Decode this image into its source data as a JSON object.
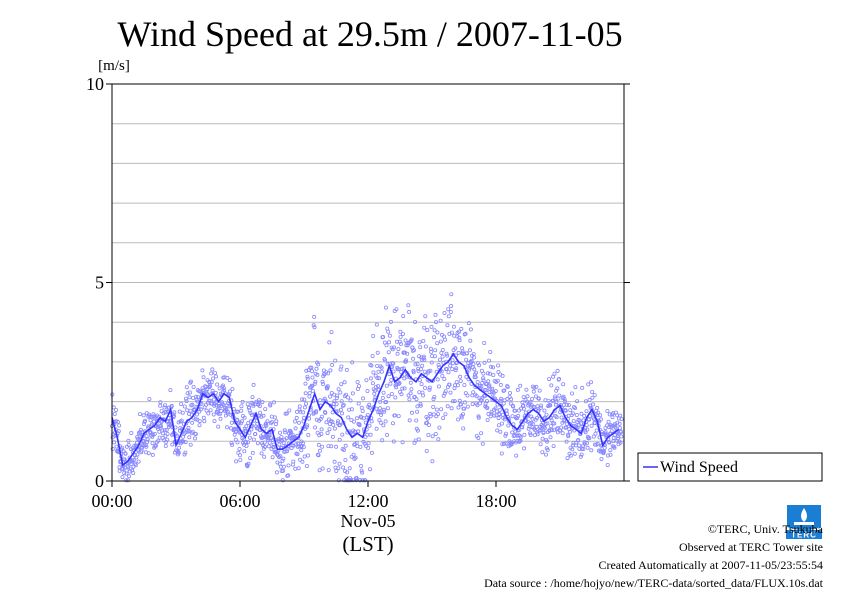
{
  "chart_data": {
    "type": "scatter",
    "title": "Wind Speed at 29.5m / 2007-11-05",
    "ylabel": "[m/s]",
    "xlabel": "(LST)",
    "date_label": "Nov-05",
    "ylim": [
      0,
      10
    ],
    "xlim": [
      "00:00",
      "24:00"
    ],
    "y_ticks": [
      {
        "value": 0,
        "label": "0"
      },
      {
        "value": 5,
        "label": "5"
      },
      {
        "value": 10,
        "label": "10"
      }
    ],
    "x_ticks": [
      {
        "value": 0,
        "label": "00:00"
      },
      {
        "value": 6,
        "label": "06:00"
      },
      {
        "value": 12,
        "label": "12:00"
      },
      {
        "value": 18,
        "label": "18:00"
      }
    ],
    "grid": true,
    "legend_position": "right",
    "series": [
      {
        "name": "Wind Speed",
        "color": "#3333ff",
        "point_color": "#8888ff",
        "mean_x_hours": [
          0.0,
          0.25,
          0.5,
          0.75,
          1.0,
          1.25,
          1.5,
          1.75,
          2.0,
          2.25,
          2.5,
          2.75,
          3.0,
          3.25,
          3.5,
          3.75,
          4.0,
          4.25,
          4.5,
          4.75,
          5.0,
          5.25,
          5.5,
          5.75,
          6.0,
          6.25,
          6.5,
          6.75,
          7.0,
          7.25,
          7.5,
          7.75,
          8.0,
          8.25,
          8.5,
          8.75,
          9.0,
          9.25,
          9.5,
          9.75,
          10.0,
          10.25,
          10.5,
          10.75,
          11.0,
          11.25,
          11.5,
          11.75,
          12.0,
          12.25,
          12.5,
          12.75,
          13.0,
          13.25,
          13.5,
          13.75,
          14.0,
          14.25,
          14.5,
          14.75,
          15.0,
          15.25,
          15.5,
          15.75,
          16.0,
          16.25,
          16.5,
          16.75,
          17.0,
          17.25,
          17.5,
          17.75,
          18.0,
          18.25,
          18.5,
          18.75,
          19.0,
          19.25,
          19.5,
          19.75,
          20.0,
          20.25,
          20.5,
          20.75,
          21.0,
          21.25,
          21.5,
          21.75,
          22.0,
          22.25,
          22.5,
          22.75,
          23.0,
          23.25,
          23.5,
          23.75
        ],
        "mean_y": [
          1.6,
          1.1,
          0.4,
          0.5,
          0.7,
          0.9,
          1.2,
          1.3,
          1.4,
          1.6,
          1.5,
          1.8,
          0.9,
          1.2,
          1.5,
          1.6,
          1.8,
          2.2,
          2.1,
          2.2,
          2.0,
          2.2,
          2.1,
          1.5,
          1.3,
          1.1,
          1.4,
          1.7,
          1.3,
          1.2,
          1.3,
          0.8,
          0.8,
          0.9,
          1.0,
          1.1,
          1.4,
          1.8,
          2.2,
          1.8,
          2.0,
          1.9,
          1.7,
          1.6,
          1.3,
          1.1,
          1.2,
          1.1,
          1.5,
          1.8,
          2.2,
          2.5,
          2.9,
          2.5,
          2.6,
          2.8,
          2.6,
          2.5,
          2.7,
          2.6,
          2.5,
          2.7,
          2.9,
          3.0,
          3.2,
          3.0,
          2.9,
          2.6,
          2.4,
          2.3,
          2.2,
          2.1,
          2.0,
          1.9,
          1.6,
          1.4,
          1.3,
          1.5,
          1.7,
          1.8,
          1.7,
          1.5,
          1.6,
          1.8,
          1.9,
          1.6,
          1.4,
          1.3,
          1.2,
          1.6,
          1.8,
          1.5,
          0.9,
          1.1,
          1.2,
          1.3
        ],
        "scatter_amplitude": [
          0.4,
          0.4,
          0.3,
          0.3,
          0.3,
          0.4,
          0.4,
          0.4,
          0.4,
          0.4,
          0.4,
          0.4,
          0.5,
          0.5,
          0.5,
          0.5,
          0.4,
          0.4,
          0.4,
          0.4,
          0.4,
          0.4,
          0.4,
          0.5,
          0.5,
          0.5,
          0.5,
          0.5,
          0.5,
          0.5,
          0.5,
          0.5,
          0.5,
          0.5,
          0.5,
          0.6,
          0.7,
          0.9,
          1.1,
          1.1,
          1.0,
          1.0,
          1.0,
          1.0,
          1.0,
          1.1,
          1.1,
          1.1,
          1.0,
          1.0,
          1.0,
          1.0,
          1.0,
          1.0,
          1.0,
          1.0,
          1.0,
          1.0,
          1.0,
          1.0,
          1.0,
          1.0,
          1.0,
          1.0,
          1.0,
          1.0,
          1.0,
          0.9,
          0.8,
          0.7,
          0.7,
          0.6,
          0.6,
          0.6,
          0.5,
          0.5,
          0.5,
          0.5,
          0.5,
          0.5,
          0.5,
          0.5,
          0.5,
          0.5,
          0.5,
          0.5,
          0.5,
          0.5,
          0.5,
          0.5,
          0.5,
          0.5,
          0.4,
          0.4,
          0.4,
          0.4
        ]
      }
    ]
  },
  "footer": {
    "copyright": "©TERC, Univ. Tsukuba",
    "observed": "Observed at TERC Tower site",
    "created": "Created Automatically at 2007-11-05/23:55:54",
    "source": "Data source : /home/hojyo/new/TERC-data/sorted_data/FLUX.10s.dat"
  },
  "logo": {
    "icon": "terc-logo-icon",
    "text": "TERC",
    "color": "#1a7fd4"
  }
}
